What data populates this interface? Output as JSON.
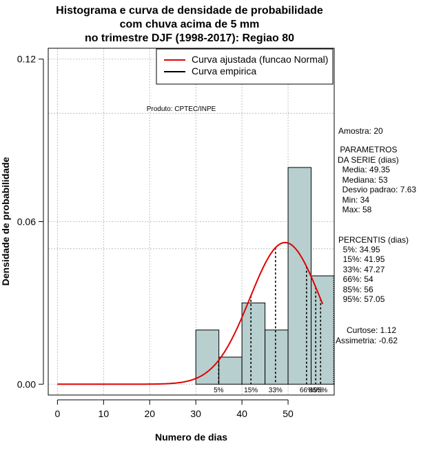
{
  "chart_data": {
    "type": "histogram",
    "title_lines": [
      "Histograma e curva de densidade de probabilidade",
      "com chuva acima de 5 mm",
      "no trimestre DJF (1998-2017): Regiao 80"
    ],
    "xlabel": "Numero de dias",
    "ylabel": "Densidade de probabilidade",
    "xlim": [
      -2,
      60
    ],
    "ylim": [
      -0.004,
      0.124
    ],
    "x_ticks": [
      0,
      10,
      20,
      30,
      40,
      50
    ],
    "x_tick_labels": [
      "0",
      "10",
      "20",
      "30",
      "40",
      "50"
    ],
    "y_ticks": [
      0.0,
      0.06,
      0.12
    ],
    "y_tick_labels": [
      "0.00",
      "0.06",
      "0.12"
    ],
    "grid_x": [
      0,
      10,
      20,
      30,
      40,
      50
    ],
    "grid_y": [
      0.0,
      0.05,
      0.06,
      0.1,
      0.12
    ],
    "bins": [
      {
        "start": 30,
        "end": 35,
        "density": 0.02
      },
      {
        "start": 35,
        "end": 40,
        "density": 0.01
      },
      {
        "start": 40,
        "end": 45,
        "density": 0.03
      },
      {
        "start": 45,
        "end": 50,
        "density": 0.02
      },
      {
        "start": 50,
        "end": 55,
        "density": 0.08
      },
      {
        "start": 55,
        "end": 60,
        "density": 0.04
      }
    ],
    "normal_curve": {
      "mean": 49.35,
      "sd": 7.63,
      "x_from": 0,
      "x_to": 57.5
    },
    "percentile_lines": [
      {
        "label": "5%",
        "x": 34.95
      },
      {
        "label": "15%",
        "x": 41.95
      },
      {
        "label": "33%",
        "x": 47.27
      },
      {
        "label": "66%",
        "x": 54
      },
      {
        "label": "85%",
        "x": 56
      },
      {
        "label": "95%",
        "x": 57.05
      }
    ],
    "legend": [
      {
        "label": "Curva ajustada (funcao Normal)",
        "color": "#e00000"
      },
      {
        "label": "Curva empirica",
        "color": "#000000"
      }
    ],
    "legend_position": "top-right",
    "annotation": "Produto: CPTEC/INPE",
    "bar_color": "#b7cfce",
    "curve_color": "#e00000"
  },
  "side_panel": {
    "amostra": "Amostra: 20",
    "params_header": " PARAMETROS",
    "params_subheader": "DA SERIE (dias)",
    "params": [
      "  Media: 49.35",
      "  Mediana: 53",
      "  Desvio padrao: 7.63",
      "  Min: 34",
      "  Max: 58"
    ],
    "percentis_header": "PERCENTIS (dias)",
    "percentis": [
      "  5%: 34.95",
      "  15%: 41.95",
      "  33%: 47.27",
      "  66%: 54",
      "  85%: 56",
      "  95%: 57.05"
    ],
    "curtose": "Curtose: 1.12",
    "assimetria": "Assimetria: -0.62"
  }
}
